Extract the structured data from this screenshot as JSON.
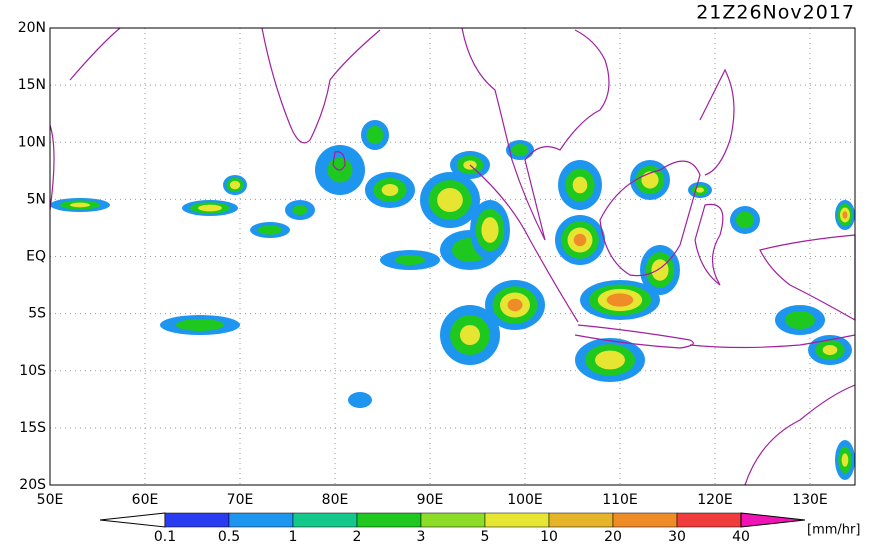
{
  "title": "21Z26Nov2017",
  "lat_labels": [
    "20N",
    "15N",
    "10N",
    "5N",
    "EQ",
    "5S",
    "10S",
    "15S",
    "20S"
  ],
  "lon_labels": [
    "50E",
    "60E",
    "70E",
    "80E",
    "90E",
    "100E",
    "110E",
    "120E",
    "130E"
  ],
  "colorbar": {
    "labels": [
      "0.1",
      "0.5",
      "1",
      "2",
      "3",
      "5",
      "10",
      "20",
      "30",
      "40"
    ],
    "colors": [
      "#ffffff",
      "#2a3cf0",
      "#1e96f0",
      "#14c88c",
      "#1ec81e",
      "#8cdc28",
      "#e6e632",
      "#e6b428",
      "#f08c28",
      "#f03c3c",
      "#f014b4"
    ],
    "unit": "[mm/hr]"
  }
}
